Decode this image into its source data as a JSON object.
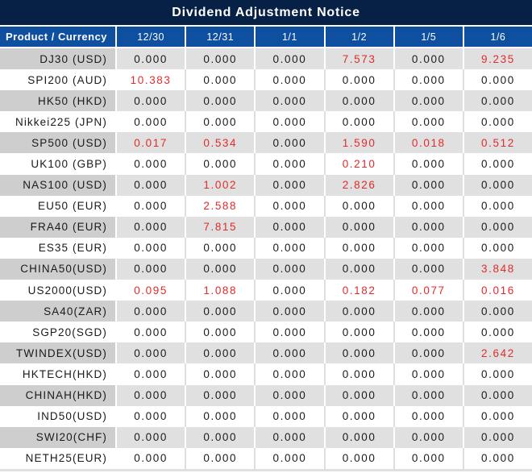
{
  "chart_data": {
    "type": "table",
    "title": "Dividend Adjustment Notice",
    "columns": [
      "Product / Currency",
      "12/30",
      "12/31",
      "1/1",
      "1/2",
      "1/5",
      "1/6"
    ],
    "zero_value": "0.000",
    "highlight_rule": "non-zero values rendered in red",
    "rows": [
      {
        "product": "DJ30 (USD)",
        "values": [
          "0.000",
          "0.000",
          "0.000",
          "7.573",
          "0.000",
          "9.235"
        ]
      },
      {
        "product": "SPI200 (AUD)",
        "values": [
          "10.383",
          "0.000",
          "0.000",
          "0.000",
          "0.000",
          "0.000"
        ]
      },
      {
        "product": "HK50 (HKD)",
        "values": [
          "0.000",
          "0.000",
          "0.000",
          "0.000",
          "0.000",
          "0.000"
        ]
      },
      {
        "product": "Nikkei225 (JPN)",
        "values": [
          "0.000",
          "0.000",
          "0.000",
          "0.000",
          "0.000",
          "0.000"
        ]
      },
      {
        "product": "SP500 (USD)",
        "values": [
          "0.017",
          "0.534",
          "0.000",
          "1.590",
          "0.018",
          "0.512"
        ]
      },
      {
        "product": "UK100 (GBP)",
        "values": [
          "0.000",
          "0.000",
          "0.000",
          "0.210",
          "0.000",
          "0.000"
        ]
      },
      {
        "product": "NAS100 (USD)",
        "values": [
          "0.000",
          "1.002",
          "0.000",
          "2.826",
          "0.000",
          "0.000"
        ]
      },
      {
        "product": "EU50 (EUR)",
        "values": [
          "0.000",
          "2.588",
          "0.000",
          "0.000",
          "0.000",
          "0.000"
        ]
      },
      {
        "product": "FRA40 (EUR)",
        "values": [
          "0.000",
          "7.815",
          "0.000",
          "0.000",
          "0.000",
          "0.000"
        ]
      },
      {
        "product": "ES35 (EUR)",
        "values": [
          "0.000",
          "0.000",
          "0.000",
          "0.000",
          "0.000",
          "0.000"
        ]
      },
      {
        "product": "CHINA50(USD)",
        "values": [
          "0.000",
          "0.000",
          "0.000",
          "0.000",
          "0.000",
          "3.848"
        ]
      },
      {
        "product": "US2000(USD)",
        "values": [
          "0.095",
          "1.088",
          "0.000",
          "0.182",
          "0.077",
          "0.016"
        ]
      },
      {
        "product": "SA40(ZAR)",
        "values": [
          "0.000",
          "0.000",
          "0.000",
          "0.000",
          "0.000",
          "0.000"
        ]
      },
      {
        "product": "SGP20(SGD)",
        "values": [
          "0.000",
          "0.000",
          "0.000",
          "0.000",
          "0.000",
          "0.000"
        ]
      },
      {
        "product": "TWINDEX(USD)",
        "values": [
          "0.000",
          "0.000",
          "0.000",
          "0.000",
          "0.000",
          "2.642"
        ]
      },
      {
        "product": "HKTECH(HKD)",
        "values": [
          "0.000",
          "0.000",
          "0.000",
          "0.000",
          "0.000",
          "0.000"
        ]
      },
      {
        "product": "CHINAH(HKD)",
        "values": [
          "0.000",
          "0.000",
          "0.000",
          "0.000",
          "0.000",
          "0.000"
        ]
      },
      {
        "product": "IND50(USD)",
        "values": [
          "0.000",
          "0.000",
          "0.000",
          "0.000",
          "0.000",
          "0.000"
        ]
      },
      {
        "product": "SWI20(CHF)",
        "values": [
          "0.000",
          "0.000",
          "0.000",
          "0.000",
          "0.000",
          "0.000"
        ]
      },
      {
        "product": "NETH25(EUR)",
        "values": [
          "0.000",
          "0.000",
          "0.000",
          "0.000",
          "0.000",
          "0.000"
        ]
      }
    ]
  },
  "colors": {
    "title_bar_bg": "#072045",
    "header_bg": "#0f4fa0",
    "header_text": "#ffffff",
    "stripe_label_bg": "#cecece",
    "stripe_value_bg": "#e0e0e0",
    "plain_row_bg": "#ffffff",
    "plain_row_divider": "#dedede",
    "label_text": "#1a1a1a",
    "value_text": "#1a1a1a",
    "highlight_text": "#e22b2b"
  }
}
